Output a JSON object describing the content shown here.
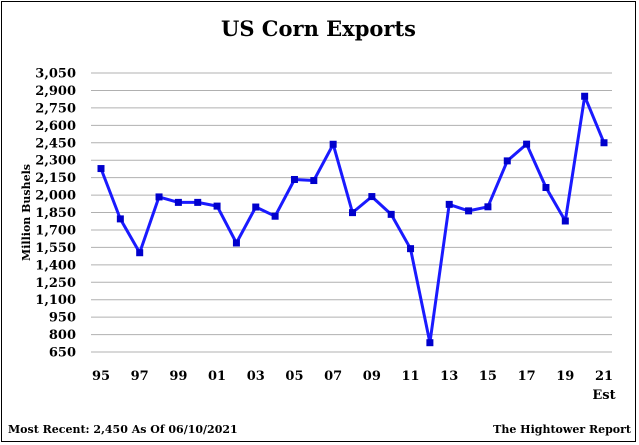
{
  "chart_data": {
    "type": "line",
    "title": "US Corn Exports",
    "ylabel": "Million Bushels",
    "xlabel": "",
    "ylim": [
      650,
      3050
    ],
    "yticks": [
      650,
      800,
      950,
      1100,
      1250,
      1400,
      1550,
      1700,
      1850,
      2000,
      2150,
      2300,
      2450,
      2600,
      2750,
      2900,
      3050
    ],
    "ytick_labels": [
      "650",
      "800",
      "950",
      "1,100",
      "1,250",
      "1,400",
      "1,550",
      "1,700",
      "1,850",
      "2,000",
      "2,150",
      "2,300",
      "2,450",
      "2,600",
      "2,750",
      "2,900",
      "3,050"
    ],
    "xtick_labels": [
      {
        "index": 0,
        "label": "95"
      },
      {
        "index": 2,
        "label": "97"
      },
      {
        "index": 4,
        "label": "99"
      },
      {
        "index": 6,
        "label": "01"
      },
      {
        "index": 8,
        "label": "03"
      },
      {
        "index": 10,
        "label": "05"
      },
      {
        "index": 12,
        "label": "07"
      },
      {
        "index": 14,
        "label": "09"
      },
      {
        "index": 16,
        "label": "11"
      },
      {
        "index": 18,
        "label": "13"
      },
      {
        "index": 20,
        "label": "15"
      },
      {
        "index": 22,
        "label": "17"
      },
      {
        "index": 24,
        "label": "19"
      },
      {
        "index": 26,
        "label": "21"
      }
    ],
    "x_sublabel": {
      "index": 26,
      "label": "Est"
    },
    "grid": true,
    "series": [
      {
        "x": [
          "95",
          "96",
          "97",
          "98",
          "99",
          "00",
          "01",
          "02",
          "03",
          "04",
          "05",
          "06",
          "07",
          "08",
          "09",
          "10",
          "11",
          "12",
          "13",
          "14",
          "15",
          "16",
          "17",
          "18",
          "19",
          "20",
          "21"
        ],
        "values": [
          2228,
          1795,
          1504,
          1984,
          1937,
          1937,
          1905,
          1588,
          1897,
          1818,
          2134,
          2125,
          2437,
          1849,
          1987,
          1834,
          1539,
          730,
          1920,
          1864,
          1899,
          2294,
          2438,
          2065,
          1777,
          2850,
          2450
        ],
        "color": "#1a1aff",
        "marker": "square"
      }
    ]
  },
  "footer": {
    "left": "Most Recent: 2,450 As Of 06/10/2021",
    "right": "The Hightower Report"
  }
}
